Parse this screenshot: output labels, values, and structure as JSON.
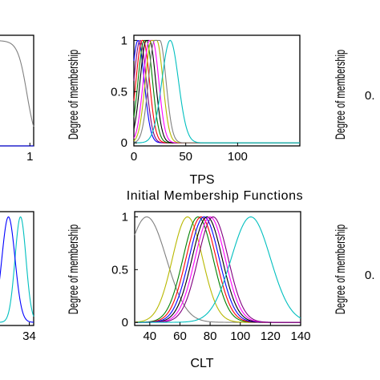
{
  "figure_title": "Initial Membership Functions",
  "chart_data": [
    {
      "type": "line",
      "panel": "top-left-partial",
      "xlabel": "",
      "ylabel": "",
      "xlim": [
        0,
        1.1
      ],
      "ylim": [
        0,
        1.05
      ],
      "xticks": [
        1
      ],
      "yticks": [],
      "curves": [
        {
          "kind": "sigmoid-fall",
          "center": 0.92,
          "scale": 0.12,
          "color": "#808080"
        },
        {
          "kind": "flat",
          "level": 0.0,
          "color": "#0000ff"
        }
      ]
    },
    {
      "type": "line",
      "panel": "top-middle",
      "xlabel": "TPS",
      "ylabel": "Degree of membership",
      "xlim": [
        0,
        160
      ],
      "ylim": [
        -0.03,
        1.05
      ],
      "xticks": [
        0,
        50,
        100
      ],
      "yticks": [
        0,
        0.5,
        1
      ],
      "curves": [
        {
          "kind": "flat-gauss",
          "c1": 4,
          "c2": 4,
          "s": 6,
          "color": "#0000ff"
        },
        {
          "kind": "flat-gauss",
          "c1": 6,
          "c2": 6,
          "s": 6,
          "color": "#800080"
        },
        {
          "kind": "flat-gauss",
          "c1": 8,
          "c2": 9,
          "s": 6,
          "color": "#ff0000"
        },
        {
          "kind": "flat-gauss",
          "c1": 10,
          "c2": 12,
          "s": 6,
          "color": "#008000"
        },
        {
          "kind": "flat-gauss",
          "c1": 12,
          "c2": 15,
          "s": 6,
          "color": "#000000"
        },
        {
          "kind": "flat-gauss",
          "c1": 15,
          "c2": 18,
          "s": 6,
          "color": "#ff00ff"
        },
        {
          "kind": "flat-gauss",
          "c1": 17,
          "c2": 22,
          "s": 6,
          "color": "#b8b800"
        },
        {
          "kind": "flat-gauss",
          "c1": 20,
          "c2": 25,
          "s": 6,
          "color": "#808080"
        },
        {
          "kind": "flat-gauss",
          "c1": 35,
          "c2": 35,
          "s": 8,
          "color": "#00bfbf"
        }
      ]
    },
    {
      "type": "line",
      "panel": "top-right-partial",
      "xlabel": "",
      "ylabel": "Degree of membership",
      "yticks_visible_text": "0."
    },
    {
      "type": "line",
      "panel": "bottom-left-partial",
      "xlabel": "",
      "ylabel": "",
      "xlim": [
        0,
        38
      ],
      "ylim": [
        -0.03,
        1.05
      ],
      "xticks": [
        34
      ],
      "yticks": [],
      "curves": [
        {
          "kind": "gauss",
          "center": 26,
          "sigma": 5,
          "color": "#00bfbf"
        },
        {
          "kind": "gauss",
          "center": 15,
          "sigma": 6,
          "color": "#0000ff"
        }
      ]
    },
    {
      "type": "line",
      "panel": "bottom-middle",
      "xlabel": "CLT",
      "ylabel": "Degree of membership",
      "xlim": [
        30,
        140
      ],
      "ylim": [
        -0.03,
        1.05
      ],
      "xticks": [
        40,
        60,
        80,
        100,
        120,
        140
      ],
      "yticks": [
        0,
        0.5,
        1
      ],
      "curves": [
        {
          "kind": "gauss",
          "center": 38,
          "sigma": 13,
          "color": "#808080"
        },
        {
          "kind": "gauss",
          "center": 65,
          "sigma": 10,
          "color": "#b8b800"
        },
        {
          "kind": "gauss",
          "center": 72,
          "sigma": 10,
          "color": "#008000"
        },
        {
          "kind": "gauss",
          "center": 74,
          "sigma": 10,
          "color": "#ff0000"
        },
        {
          "kind": "gauss",
          "center": 76,
          "sigma": 10,
          "color": "#0000ff"
        },
        {
          "kind": "gauss",
          "center": 78,
          "sigma": 10,
          "color": "#000000"
        },
        {
          "kind": "gauss",
          "center": 80,
          "sigma": 10,
          "color": "#ff00ff"
        },
        {
          "kind": "gauss",
          "center": 82,
          "sigma": 10,
          "color": "#800080"
        },
        {
          "kind": "gauss",
          "center": 107,
          "sigma": 13,
          "color": "#00bfbf"
        }
      ]
    },
    {
      "type": "line",
      "panel": "bottom-right-partial",
      "xlabel": "",
      "ylabel": "Degree of membership",
      "yticks_visible_text": "0."
    }
  ]
}
